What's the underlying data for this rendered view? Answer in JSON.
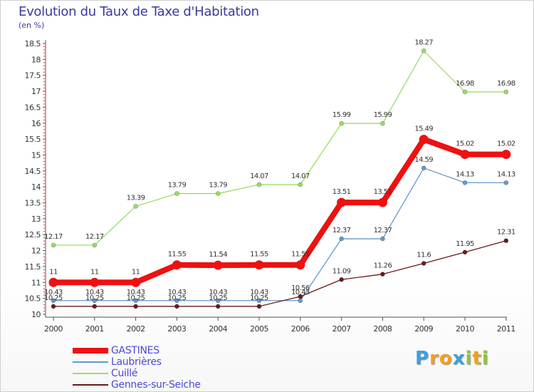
{
  "title": "Evolution du Taux de Taxe d'Habitation",
  "unit_label": "(en %)",
  "logo": {
    "letters": [
      {
        "ch": "P",
        "color": "#3aa0e0"
      },
      {
        "ch": "r",
        "color": "#f0a020"
      },
      {
        "ch": "o",
        "color": "#f0a020"
      },
      {
        "ch": "x",
        "color": "#3aa0e0"
      },
      {
        "ch": "i",
        "color": "#8cc63f"
      },
      {
        "ch": "t",
        "color": "#f0a020"
      },
      {
        "ch": "i",
        "color": "#8cc63f"
      }
    ]
  },
  "chart_data": {
    "type": "line",
    "title": "Evolution du Taux de Taxe d'Habitation",
    "subtitle": "(en %)",
    "xlabel": "",
    "ylabel": "",
    "categories": [
      "2000",
      "2001",
      "2002",
      "2003",
      "2004",
      "2005",
      "2006",
      "2007",
      "2008",
      "2009",
      "2010",
      "2011"
    ],
    "ylim": [
      10,
      18.5
    ],
    "yticks": [
      "10",
      "10.5",
      "11",
      "11.5",
      "12",
      "12.5",
      "13",
      "13.5",
      "14",
      "14.5",
      "15",
      "15.5",
      "16",
      "16.5",
      "17",
      "17.5",
      "18",
      "18.5"
    ],
    "grid": false,
    "legend_position": "bottom-left",
    "series": [
      {
        "name": "Cuillé",
        "color": "#99dd66",
        "values": [
          12.17,
          12.17,
          13.39,
          13.79,
          13.79,
          14.07,
          14.07,
          15.99,
          15.99,
          18.27,
          16.98,
          16.98
        ],
        "labels": [
          "12.17",
          "12.17",
          "13.39",
          "13.79",
          "13.79",
          "14.07",
          "14.07",
          "15.99",
          "15.99",
          "18.27",
          "16.98",
          "16.98"
        ]
      },
      {
        "name": "Laubrières",
        "color": "#6699cc",
        "values": [
          10.43,
          10.43,
          10.43,
          10.43,
          10.43,
          10.43,
          10.43,
          12.37,
          12.37,
          14.59,
          14.13,
          14.13
        ],
        "labels": [
          "10.43",
          "10.43",
          "10.43",
          "10.43",
          "10.43",
          "10.43",
          "10.43",
          "12.37",
          "12.37",
          "14.59",
          "14.13",
          "14.13"
        ]
      },
      {
        "name": "Gennes-sur-Seiche",
        "color": "#6b1a1a",
        "values": [
          10.25,
          10.25,
          10.25,
          10.25,
          10.25,
          10.25,
          10.56,
          11.09,
          11.26,
          11.6,
          11.95,
          12.31
        ],
        "labels": [
          "10.25",
          "10.25",
          "10.25",
          "10.25",
          "10.25",
          "10.25",
          "10.56",
          "11.09",
          "11.26",
          "11.6",
          "11.95",
          "12.31"
        ]
      },
      {
        "name": "GASTINES",
        "color": "#ee1111",
        "values": [
          11,
          11,
          11,
          11.55,
          11.54,
          11.55,
          11.55,
          13.51,
          13.51,
          15.49,
          15.02,
          15.02
        ],
        "labels": [
          "11",
          "11",
          "11",
          "11.55",
          "11.54",
          "11.55",
          "11.55",
          "13.51",
          "13.51",
          "15.49",
          "15.02",
          "15.02"
        ]
      }
    ],
    "legend_order": [
      "GASTINES",
      "Laubrières",
      "Cuillé",
      "Gennes-sur-Seiche"
    ]
  }
}
